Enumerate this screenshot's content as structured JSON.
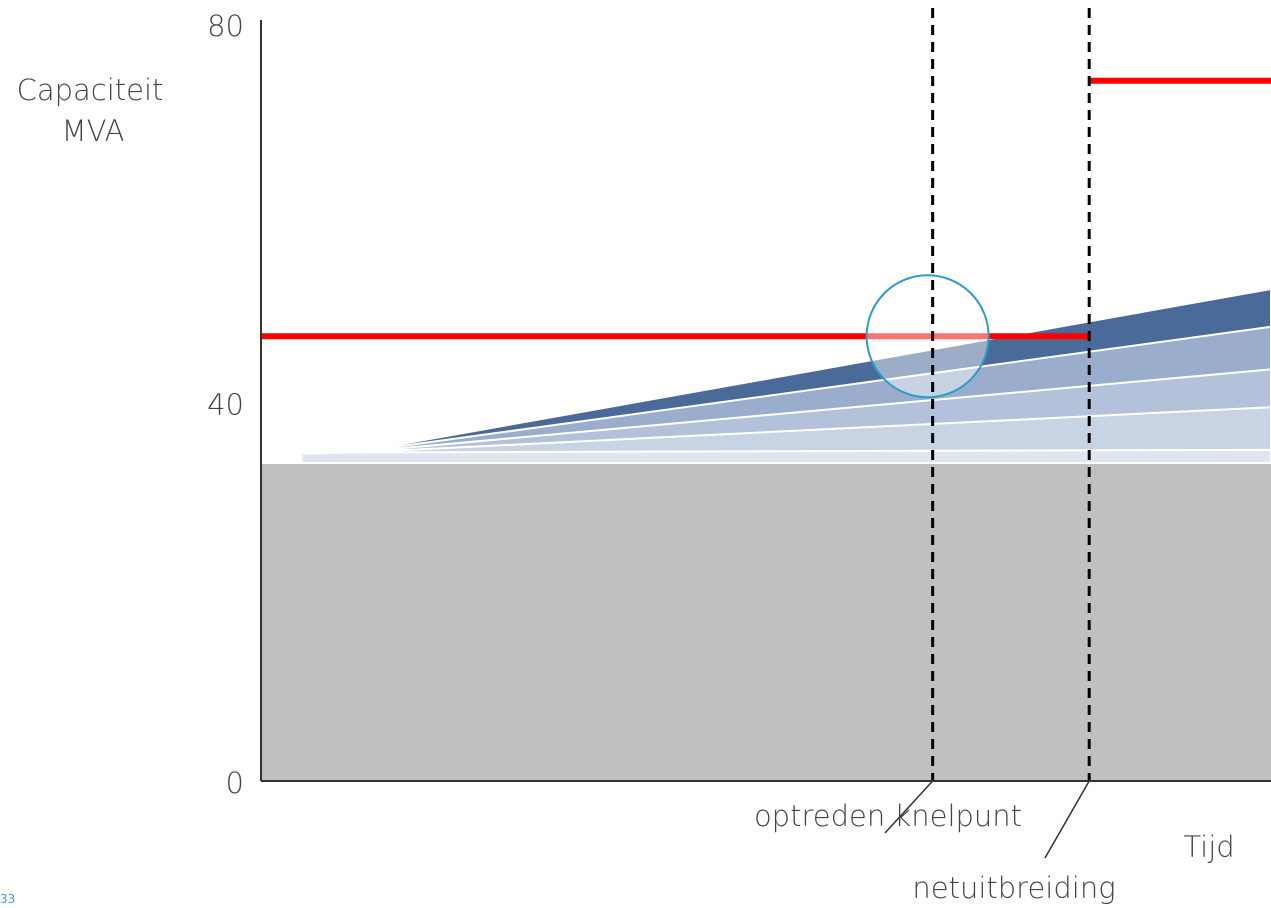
{
  "chart_data": {
    "type": "area",
    "ylabel_lines": [
      "Capaciteit",
      "MVA"
    ],
    "xlabel": "Tijd",
    "yticks": [
      0,
      40,
      80
    ],
    "ylim": [
      0,
      80
    ],
    "x_range": [
      0,
      100
    ],
    "base_load": {
      "value": 33.5,
      "color": "#c0c0c0"
    },
    "growth_bands": [
      {
        "start": [
          4,
          34.6
        ],
        "end": [
          100,
          52.0
        ],
        "color": "#4a6a99"
      },
      {
        "start": [
          4,
          34.6
        ],
        "end": [
          100,
          48.0
        ],
        "color": "#9aadcc"
      },
      {
        "start": [
          4,
          34.6
        ],
        "end": [
          100,
          43.5
        ],
        "color": "#b3c2da"
      },
      {
        "start": [
          4,
          34.6
        ],
        "end": [
          100,
          39.5
        ],
        "color": "#c8d3e4"
      },
      {
        "start": [
          4,
          34.6
        ],
        "end": [
          100,
          35.0
        ],
        "color": "#dfe6f0"
      }
    ],
    "capacity_lines": [
      {
        "x_from": 0,
        "x_to": 82,
        "value": 47,
        "color": "#ff0000"
      },
      {
        "x_from": 82,
        "x_to": 100,
        "value": 74,
        "color": "#ff0000"
      }
    ],
    "markers": [
      {
        "x": 66.5,
        "label": "optreden knelpunt"
      },
      {
        "x": 82,
        "label": "netuitbreiding"
      }
    ],
    "highlight_circle": {
      "x": 66,
      "y": 47,
      "color": "#2a9ccb"
    }
  },
  "page_number": "33"
}
